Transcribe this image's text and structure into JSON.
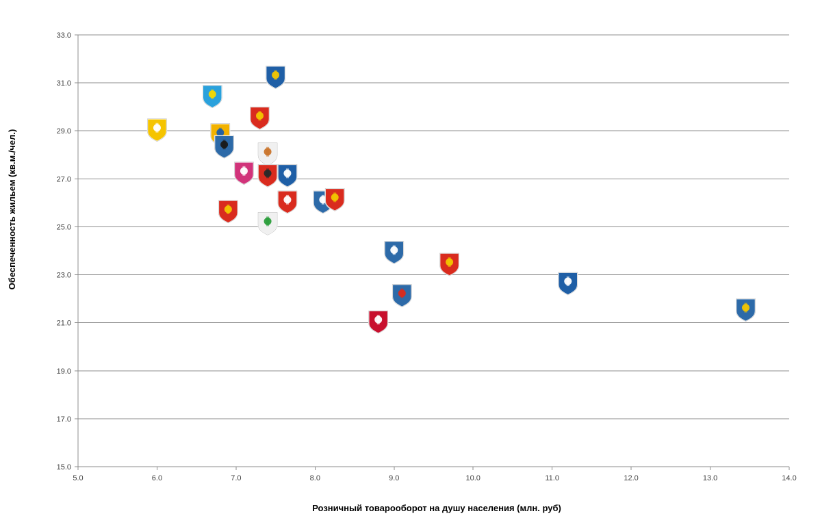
{
  "chart_data": {
    "type": "scatter",
    "xlabel": "Розничный товарооборот на душу населения (млн. руб)",
    "ylabel": "Обеспеченность жильем (кв.м./чел.)",
    "xlim": [
      5.0,
      14.0
    ],
    "ylim": [
      15.0,
      33.0
    ],
    "xticks": [
      "5.0",
      "6.0",
      "7.0",
      "8.0",
      "9.0",
      "10.0",
      "11.0",
      "12.0",
      "13.0",
      "14.0"
    ],
    "yticks": [
      "15.0",
      "17.0",
      "19.0",
      "21.0",
      "23.0",
      "25.0",
      "27.0",
      "29.0",
      "31.0",
      "33.0"
    ],
    "grid": "horizontal",
    "legend": "none",
    "marker": "coat-of-arms icons",
    "points": [
      {
        "x": 7.5,
        "y": 31.3,
        "icon": "coat-of-arms-blue-triangle-icon",
        "colors": [
          "#1f5fa6",
          "#f2c500"
        ]
      },
      {
        "x": 6.7,
        "y": 30.5,
        "icon": "coat-of-arms-lightblue-goat-icon",
        "colors": [
          "#2aa1dc",
          "#f5d800"
        ]
      },
      {
        "x": 7.3,
        "y": 29.6,
        "icon": "coat-of-arms-red-gold-beasts-icon",
        "colors": [
          "#d92b1e",
          "#f2c500"
        ]
      },
      {
        "x": 6.0,
        "y": 29.1,
        "icon": "coat-of-arms-yellow-white-icon",
        "colors": [
          "#f5c400",
          "#ffffff"
        ]
      },
      {
        "x": 6.8,
        "y": 28.9,
        "icon": "coat-of-arms-saint-figures-icon",
        "colors": [
          "#f2b200",
          "#1f5fa6"
        ]
      },
      {
        "x": 6.85,
        "y": 28.4,
        "icon": "coat-of-arms-blue-eagle-icon",
        "colors": [
          "#2d6aa8",
          "#1a1a1a"
        ]
      },
      {
        "x": 7.4,
        "y": 28.1,
        "icon": "coat-of-arms-crossed-axes-icon",
        "colors": [
          "#f0f0f0",
          "#c9742b"
        ]
      },
      {
        "x": 7.1,
        "y": 27.3,
        "icon": "coat-of-arms-pink-knight-icon",
        "colors": [
          "#d1337a",
          "#ffffff"
        ]
      },
      {
        "x": 7.4,
        "y": 27.2,
        "icon": "coat-of-arms-red-rider-icon",
        "colors": [
          "#d92b1e",
          "#2a2a2a"
        ]
      },
      {
        "x": 7.65,
        "y": 27.2,
        "icon": "coat-of-arms-blue-star-crescent-icon",
        "colors": [
          "#1f5fa6",
          "#ffffff"
        ]
      },
      {
        "x": 8.1,
        "y": 26.1,
        "icon": "coat-of-arms-blue-deer-icon",
        "colors": [
          "#2d6aa8",
          "#ffffff"
        ]
      },
      {
        "x": 8.25,
        "y": 26.2,
        "icon": "coat-of-arms-red-gold-crown-icon",
        "colors": [
          "#d92b1e",
          "#f2c500"
        ]
      },
      {
        "x": 7.65,
        "y": 26.1,
        "icon": "coat-of-arms-red-pahonia-icon",
        "colors": [
          "#d92b1e",
          "#ffffff"
        ]
      },
      {
        "x": 6.9,
        "y": 25.7,
        "icon": "coat-of-arms-red-bow-icon",
        "colors": [
          "#d92b1e",
          "#f2c500"
        ]
      },
      {
        "x": 7.4,
        "y": 25.2,
        "icon": "coat-of-arms-white-church-icon",
        "colors": [
          "#f0f0f0",
          "#2a9d3a"
        ]
      },
      {
        "x": 9.0,
        "y": 24.0,
        "icon": "coat-of-arms-blue-castle-icon",
        "colors": [
          "#2d6aa8",
          "#ffffff"
        ]
      },
      {
        "x": 9.7,
        "y": 23.5,
        "icon": "coat-of-arms-red-gold-deer-icon",
        "colors": [
          "#d92b1e",
          "#f2c500"
        ]
      },
      {
        "x": 11.2,
        "y": 22.7,
        "icon": "coat-of-arms-blue-bow-icon",
        "colors": [
          "#1f5fa6",
          "#ffffff"
        ]
      },
      {
        "x": 9.1,
        "y": 22.2,
        "icon": "coat-of-arms-ornate-blue-icon",
        "colors": [
          "#2d6aa8",
          "#d92b1e"
        ]
      },
      {
        "x": 8.8,
        "y": 21.1,
        "icon": "coat-of-arms-red-white-cross-icon",
        "colors": [
          "#c8102e",
          "#ffffff"
        ]
      },
      {
        "x": 13.45,
        "y": 21.6,
        "icon": "coat-of-arms-blue-madonna-icon",
        "colors": [
          "#2d6aa8",
          "#f2c500"
        ]
      }
    ]
  }
}
